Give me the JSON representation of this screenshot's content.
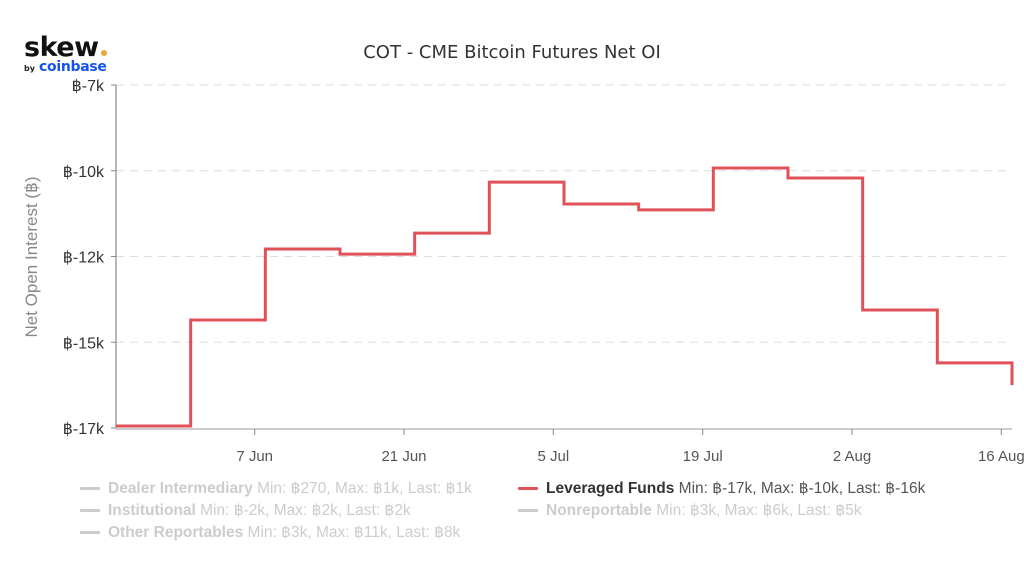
{
  "logo": {
    "main": "skew",
    "by": "by",
    "brand": "coinbase"
  },
  "chart_data": {
    "type": "line",
    "step": true,
    "title": "COT - CME Bitcoin Futures Net OI",
    "xlabel": "",
    "ylabel": "Net Open Interest (฿)",
    "ylim": [
      -17500,
      -7500
    ],
    "yticks": [
      {
        "value": -7500,
        "label": "฿-7k"
      },
      {
        "value": -10000,
        "label": "฿-10k"
      },
      {
        "value": -12500,
        "label": "฿-12k"
      },
      {
        "value": -15000,
        "label": "฿-15k"
      },
      {
        "value": -17500,
        "label": "฿-17k"
      }
    ],
    "xrange_days": [
      0,
      84
    ],
    "xticks": [
      {
        "day": 13,
        "label": "7 Jun"
      },
      {
        "day": 27,
        "label": "21 Jun"
      },
      {
        "day": 41,
        "label": "5 Jul"
      },
      {
        "day": 55,
        "label": "19 Jul"
      },
      {
        "day": 69,
        "label": "2 Aug"
      },
      {
        "day": 83,
        "label": "16 Aug"
      }
    ],
    "grid": true,
    "legend_position": "bottom",
    "series": [
      {
        "name": "Leveraged Funds",
        "color": "#e0525a",
        "visible": true,
        "x_days": [
          0,
          7,
          14,
          21,
          28,
          35,
          42,
          49,
          56,
          63,
          70,
          77,
          84
        ],
        "values": [
          -17440,
          -14350,
          -12280,
          -12430,
          -11820,
          -10330,
          -10970,
          -11140,
          -9920,
          -10210,
          -14060,
          -15600,
          -16250
        ]
      }
    ],
    "legend": [
      {
        "name": "Dealer Intermediary",
        "stats": "Min: ฿270, Max: ฿1k, Last: ฿1k",
        "active": false
      },
      {
        "name": "Leveraged Funds",
        "stats": "Min: ฿-17k, Max: ฿-10k, Last: ฿-16k",
        "active": true
      },
      {
        "name": "Institutional",
        "stats": "Min: ฿-2k, Max: ฿2k, Last: ฿2k",
        "active": false
      },
      {
        "name": "Nonreportable",
        "stats": "Min: ฿3k, Max: ฿6k, Last: ฿5k",
        "active": false
      },
      {
        "name": "Other Reportables",
        "stats": "Min: ฿3k, Max: ฿11k, Last: ฿8k",
        "active": false
      }
    ]
  }
}
